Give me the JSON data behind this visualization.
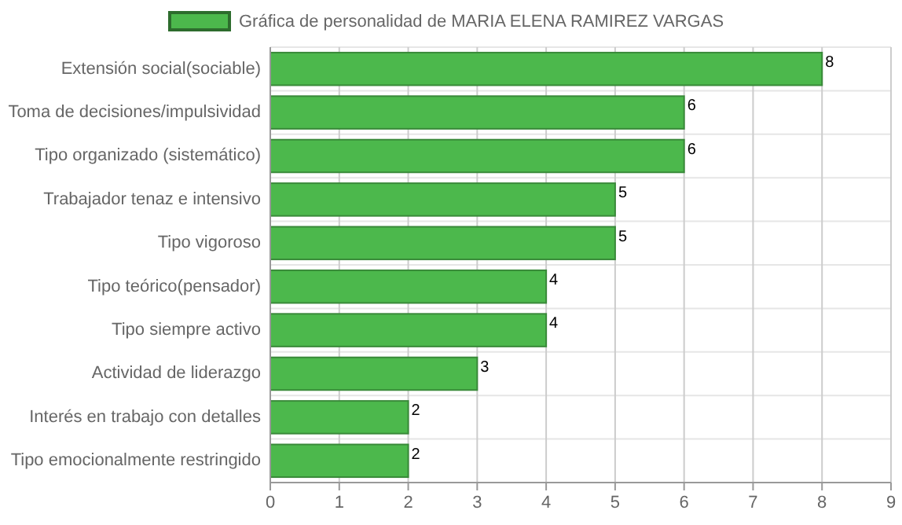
{
  "chart_data": {
    "type": "bar",
    "orientation": "horizontal",
    "categories": [
      "Extensión social(sociable)",
      "Toma de decisiones/impulsividad",
      "Tipo organizado (sistemático)",
      "Trabajador tenaz e intensivo",
      "Tipo vigoroso",
      "Tipo teórico(pensador)",
      "Tipo siempre activo",
      "Actividad de liderazgo",
      "Interés en trabajo con detalles",
      "Tipo emocionalmente restringido"
    ],
    "series": [
      {
        "name": "Gráfica de personalidad de MARIA ELENA RAMIREZ VARGAS",
        "color": "#4cb84c",
        "values": [
          8,
          6,
          6,
          5,
          5,
          4,
          4,
          3,
          2,
          2
        ]
      }
    ],
    "xlim": [
      0,
      9
    ],
    "xticks": [
      0,
      1,
      2,
      3,
      4,
      5,
      6,
      7,
      8,
      9
    ],
    "grid": true,
    "legend": "top",
    "data_labels": true
  }
}
